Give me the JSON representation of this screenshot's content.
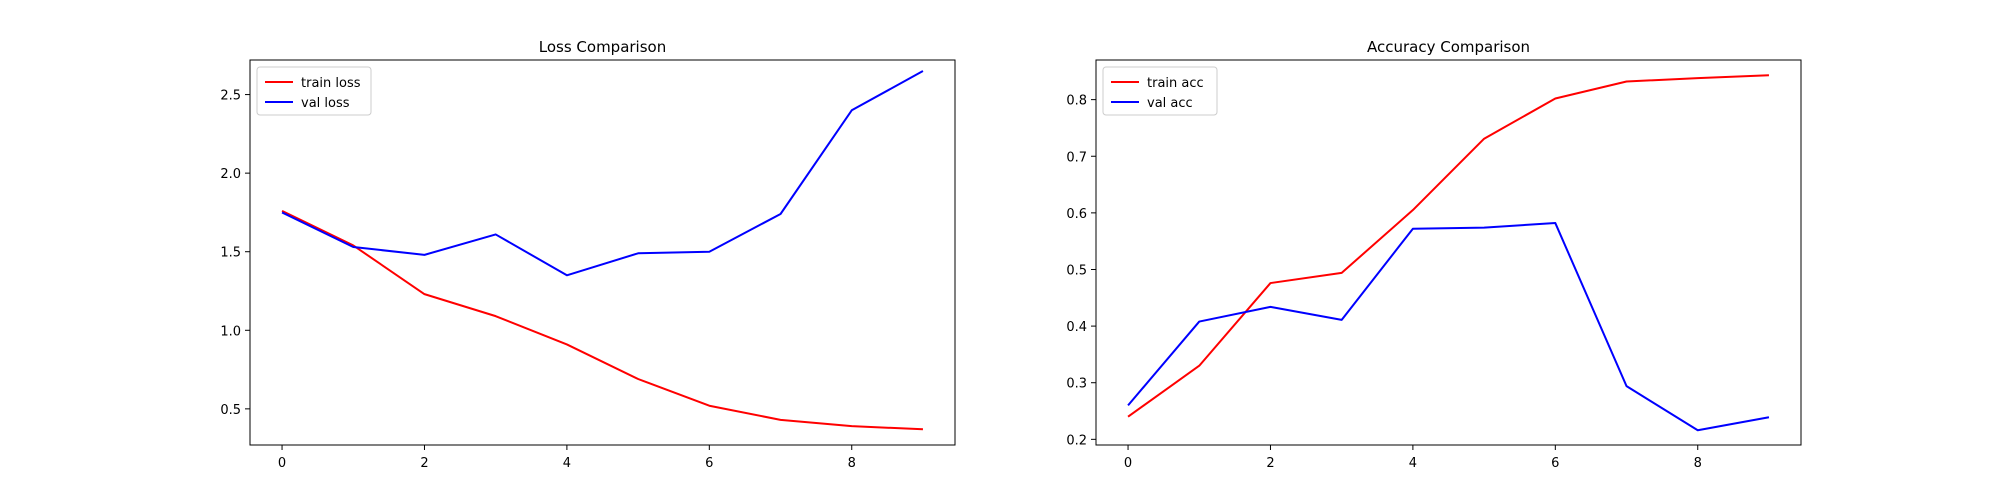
{
  "chart_data": [
    {
      "type": "line",
      "title": "Loss Comparison",
      "xlabel": "",
      "ylabel": "",
      "x": [
        0,
        1,
        2,
        3,
        4,
        5,
        6,
        7,
        8,
        9
      ],
      "xlim": [
        -0.45,
        9.45
      ],
      "ylim": [
        0.27,
        2.72
      ],
      "xticks": [
        0,
        2,
        4,
        6,
        8
      ],
      "yticks": [
        0.5,
        1.0,
        1.5,
        2.0,
        2.5
      ],
      "ytick_labels": [
        "0.5",
        "1.0",
        "1.5",
        "2.0",
        "2.5"
      ],
      "legend_position": "top-left",
      "grid": false,
      "series": [
        {
          "name": "train loss",
          "color": "#ff0000",
          "values": [
            1.76,
            1.54,
            1.23,
            1.09,
            0.91,
            0.69,
            0.52,
            0.43,
            0.39,
            0.37
          ]
        },
        {
          "name": "val loss",
          "color": "#0000ff",
          "values": [
            1.75,
            1.53,
            1.48,
            1.61,
            1.35,
            1.49,
            1.5,
            1.74,
            2.4,
            2.65
          ]
        }
      ]
    },
    {
      "type": "line",
      "title": "Accuracy Comparison",
      "xlabel": "",
      "ylabel": "",
      "x": [
        0,
        1,
        2,
        3,
        4,
        5,
        6,
        7,
        8,
        9
      ],
      "xlim": [
        -0.45,
        9.45
      ],
      "ylim": [
        0.19,
        0.87
      ],
      "xticks": [
        0,
        2,
        4,
        6,
        8
      ],
      "yticks": [
        0.2,
        0.3,
        0.4,
        0.5,
        0.6,
        0.7,
        0.8
      ],
      "ytick_labels": [
        "0.2",
        "0.3",
        "0.4",
        "0.5",
        "0.6",
        "0.7",
        "0.8"
      ],
      "legend_position": "top-left",
      "grid": false,
      "series": [
        {
          "name": "train acc",
          "color": "#ff0000",
          "values": [
            0.24,
            0.33,
            0.476,
            0.494,
            0.605,
            0.731,
            0.802,
            0.832,
            0.838,
            0.843
          ]
        },
        {
          "name": "val acc",
          "color": "#0000ff",
          "values": [
            0.26,
            0.408,
            0.434,
            0.411,
            0.572,
            0.574,
            0.582,
            0.294,
            0.216,
            0.239
          ]
        }
      ]
    }
  ]
}
